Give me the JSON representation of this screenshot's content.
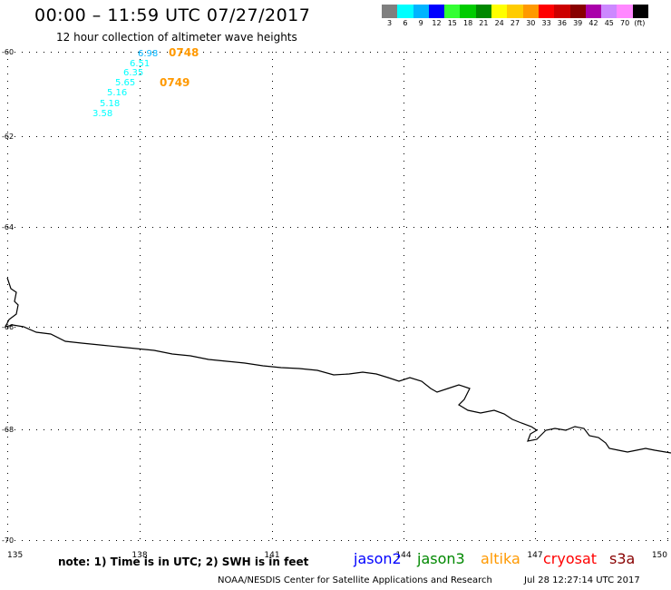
{
  "header": {
    "title": "00:00 – 11:59 UTC 07/27/2017",
    "subtitle": "12 hour collection of altimeter wave heights"
  },
  "colorbar": {
    "colors": [
      "#7f7f7f",
      "#00ffff",
      "#00b4ff",
      "#0000ff",
      "#33ff33",
      "#00cc00",
      "#008800",
      "#ffff00",
      "#ffcc00",
      "#ff9900",
      "#ff0000",
      "#cc0000",
      "#880000",
      "#aa00aa",
      "#cc88ff",
      "#ff88ff",
      "#000000"
    ],
    "labels": [
      "3",
      "6",
      "9",
      "12",
      "15",
      "18",
      "21",
      "24",
      "27",
      "30",
      "33",
      "36",
      "39",
      "42",
      "45",
      "70",
      "(ft)"
    ]
  },
  "map": {
    "lon_ticks": [
      "135",
      "138",
      "141",
      "144",
      "147",
      "150"
    ],
    "lat_ticks": [
      "-60",
      "-62",
      "-64",
      "-66",
      "-68",
      "-70"
    ],
    "wave_heights": [
      {
        "value": "6.98",
        "color": "#00b4ff"
      },
      {
        "value": "6.51",
        "color": "#00ffff"
      },
      {
        "value": "6.35",
        "color": "#00ffff"
      },
      {
        "value": "5.65",
        "color": "#00ffff"
      },
      {
        "value": "5.16",
        "color": "#00ffff"
      },
      {
        "value": "5.18",
        "color": "#00ffff"
      },
      {
        "value": "3.58",
        "color": "#00ffff"
      }
    ],
    "pass_times": [
      {
        "label": "0748",
        "color": "#ff9900"
      },
      {
        "label": "0749",
        "color": "#ff9900"
      }
    ]
  },
  "footer": {
    "note": "note: 1) Time is in UTC; 2) SWH is in feet",
    "satellites": [
      {
        "name": "jason2",
        "color": "#0000ff"
      },
      {
        "name": "jason3",
        "color": "#008800"
      },
      {
        "name": "altika",
        "color": "#ff9900"
      },
      {
        "name": "cryosat",
        "color": "#ff0000"
      },
      {
        "name": "s3a",
        "color": "#880000"
      }
    ],
    "credit": "NOAA/NESDIS Center for Satellite Applications and Research",
    "timestamp": "Jul 28 12:27:14 UTC 2017"
  }
}
